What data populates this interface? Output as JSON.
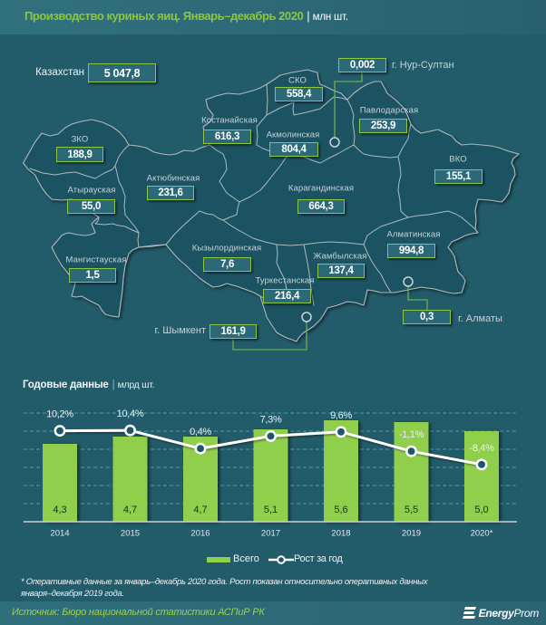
{
  "header": {
    "title": "Производство куриных яиц. Январь–декабрь 2020",
    "separator": "|",
    "unit": "млн шт."
  },
  "map": {
    "total": {
      "label": "Казахстан",
      "value": "5 047,8"
    },
    "regions": [
      {
        "name": "ЗКО",
        "value": "188,9"
      },
      {
        "name": "Атырауская",
        "value": "55,0"
      },
      {
        "name": "Мангистауская",
        "value": "1,5"
      },
      {
        "name": "Актюбинская",
        "value": "231,6"
      },
      {
        "name": "Костанайская",
        "value": "616,3"
      },
      {
        "name": "СКО",
        "value": "558,4"
      },
      {
        "name": "Акмолинская",
        "value": "804,4"
      },
      {
        "name": "Павлодарская",
        "value": "253,9"
      },
      {
        "name": "ВКО",
        "value": "155,1"
      },
      {
        "name": "Карагандинская",
        "value": "664,3"
      },
      {
        "name": "Кызылординская",
        "value": "7,6"
      },
      {
        "name": "Жамбылская",
        "value": "137,4"
      },
      {
        "name": "Туркестанская",
        "value": "216,4"
      },
      {
        "name": "Алматинская",
        "value": "994,8"
      }
    ],
    "cities": [
      {
        "name": "г. Нур-Султан",
        "value": "0,002"
      },
      {
        "name": "г. Алматы",
        "value": "0,3"
      },
      {
        "name": "г. Шымкент",
        "value": "161,9"
      }
    ]
  },
  "chart_data": {
    "type": "bar",
    "title": "Годовые данные",
    "separator": "|",
    "unit": "млрд шт.",
    "categories": [
      "2014",
      "2015",
      "2016",
      "2017",
      "2018",
      "2019",
      "2020*"
    ],
    "series": [
      {
        "name": "Всего",
        "type": "bar",
        "axis": "left",
        "values": [
          4.3,
          4.7,
          4.7,
          5.1,
          5.6,
          5.5,
          5.0
        ]
      },
      {
        "name": "Рост за год",
        "type": "line",
        "axis": "right",
        "unit": "%",
        "values": [
          10.2,
          10.4,
          0.4,
          7.3,
          9.6,
          -1.1,
          -8.4
        ]
      }
    ],
    "ylim": [
      0,
      6
    ],
    "y2lim": [
      -40,
      20
    ],
    "grid": true,
    "legend": "bottom-center",
    "colors": {
      "bar": "#8fcf4c",
      "line": "#ffffff",
      "grid": "#4a9ab2"
    }
  },
  "footer": {
    "footnote_line1": "* Оперативные данные за январь–декабрь 2020 года. Рост показан относительно оперативных данных",
    "footnote_line2": "января–декабря 2019 года.",
    "source": "Источник: Бюро национальной  статистики АСПиР РК",
    "logo_bold": "Energy",
    "logo_light": "Prom"
  }
}
